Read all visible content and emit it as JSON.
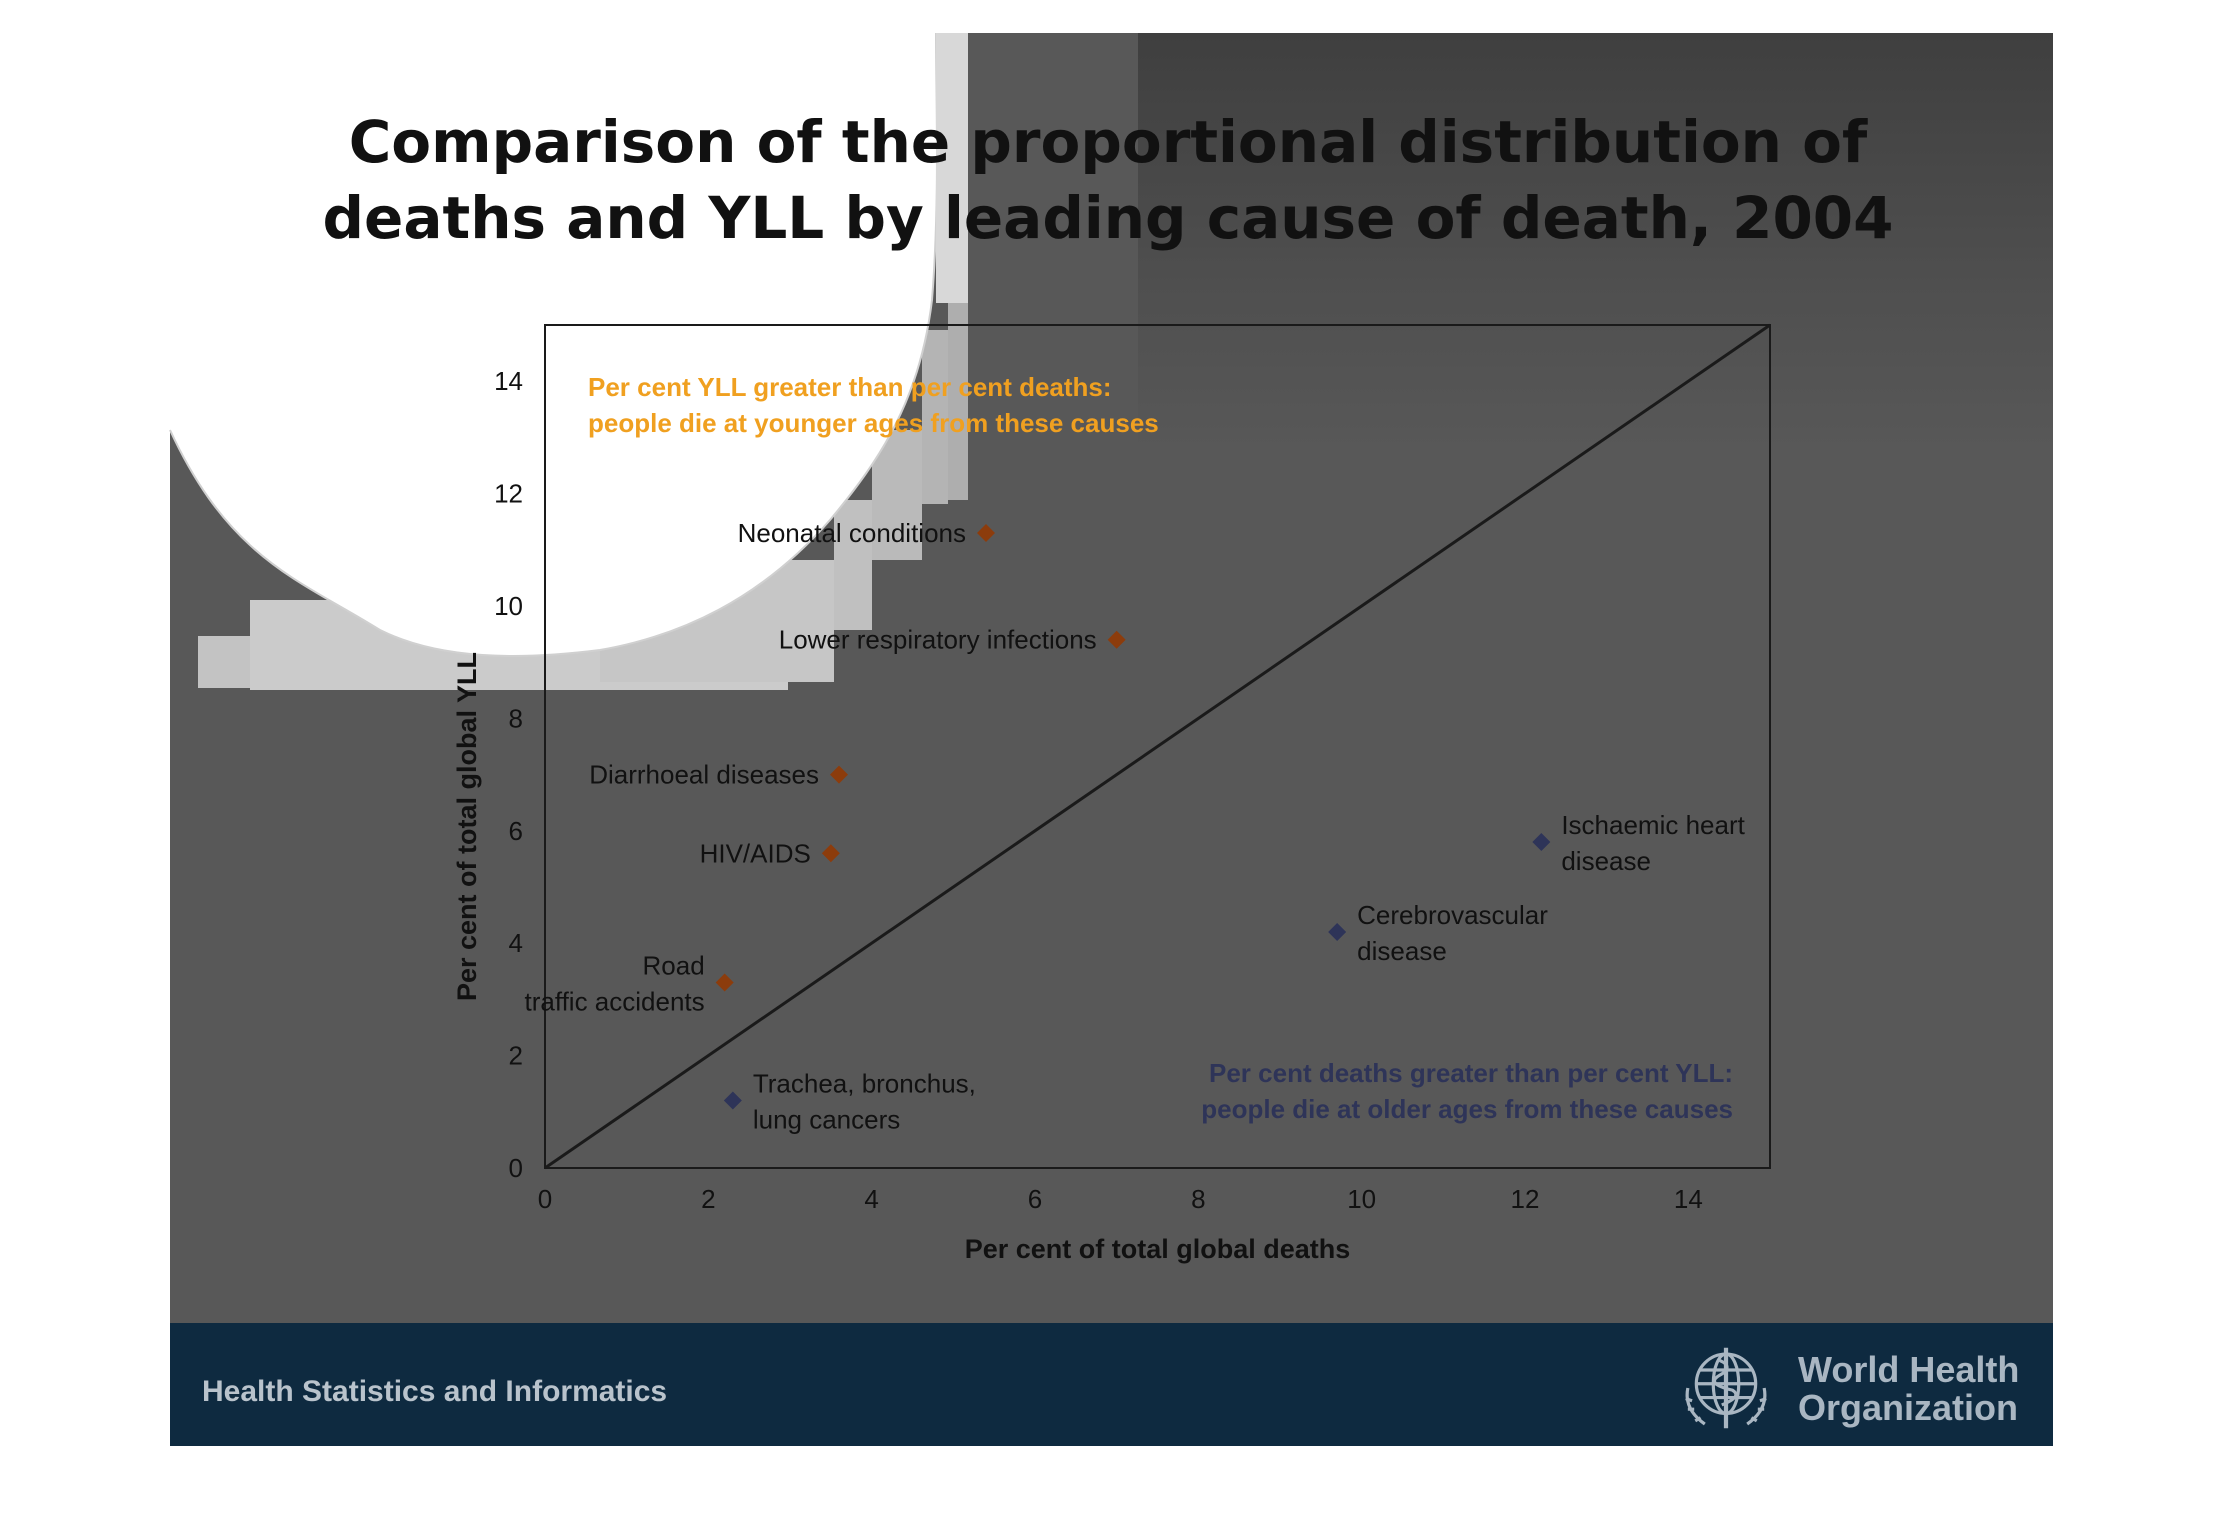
{
  "title_lines": [
    "Comparison of the proportional distribution of",
    "deaths and YLL by leading cause of death, 2004"
  ],
  "footer": {
    "label": "Health Statistics and Informatics",
    "org_line1": "World Health",
    "org_line2": "Organization"
  },
  "colors": {
    "slide_bg": "#585858",
    "footer_bg": "#0e2a40",
    "upper_group": "#8c3c0c",
    "lower_group": "#2e3458",
    "upper_text": "#f0a020",
    "lower_text": "#2e3458"
  },
  "chart_data": {
    "type": "scatter",
    "xlabel": "Per cent of total global deaths",
    "ylabel": "Per cent of total global YLL",
    "xlim": [
      0,
      15
    ],
    "ylim": [
      0,
      15
    ],
    "xticks": [
      0,
      2,
      4,
      6,
      8,
      10,
      12,
      14
    ],
    "yticks": [
      0,
      2,
      4,
      6,
      8,
      10,
      12,
      14
    ],
    "reference_line": "y = x",
    "annotations": {
      "upper": [
        "Per cent YLL greater than per cent deaths:",
        "people die at younger ages from these causes"
      ],
      "lower": [
        "Per cent deaths greater than per cent YLL:",
        "people die at older ages from these causes"
      ]
    },
    "points": [
      {
        "label_lines": [
          "Neonatal conditions"
        ],
        "x": 5.4,
        "y": 11.3,
        "group": "upper",
        "label_side": "left"
      },
      {
        "label_lines": [
          "Lower respiratory infections"
        ],
        "x": 7.0,
        "y": 9.4,
        "group": "upper",
        "label_side": "left"
      },
      {
        "label_lines": [
          "Diarrhoeal diseases"
        ],
        "x": 3.6,
        "y": 7.0,
        "group": "upper",
        "label_side": "left"
      },
      {
        "label_lines": [
          "HIV/AIDS"
        ],
        "x": 3.5,
        "y": 5.6,
        "group": "upper",
        "label_side": "left"
      },
      {
        "label_lines": [
          "Road",
          "traffic accidents"
        ],
        "x": 2.2,
        "y": 3.3,
        "group": "upper",
        "label_side": "left"
      },
      {
        "label_lines": [
          "Trachea, bronchus,",
          "lung cancers"
        ],
        "x": 2.3,
        "y": 1.2,
        "group": "lower",
        "label_side": "right"
      },
      {
        "label_lines": [
          "Cerebrovascular",
          "disease"
        ],
        "x": 9.7,
        "y": 4.2,
        "group": "lower",
        "label_side": "right"
      },
      {
        "label_lines": [
          "Ischaemic heart",
          "disease"
        ],
        "x": 12.2,
        "y": 5.8,
        "group": "lower",
        "label_side": "right"
      }
    ]
  }
}
